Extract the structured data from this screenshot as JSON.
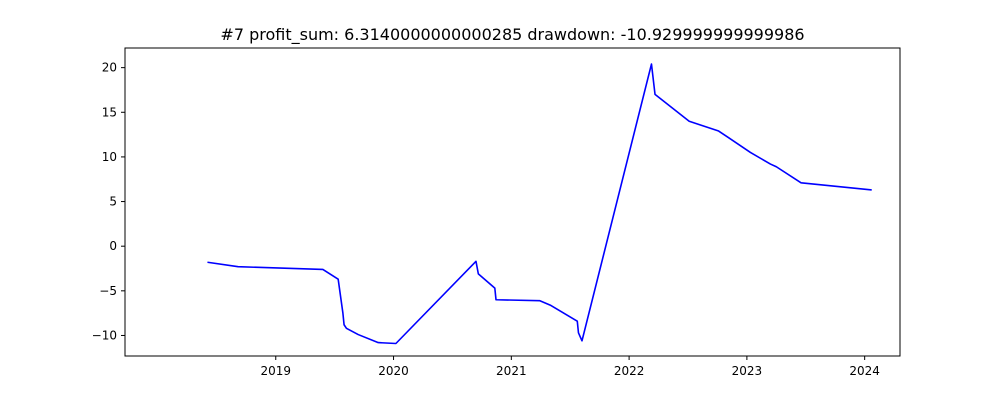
{
  "chart_data": {
    "type": "line",
    "title": "#7   profit_sum: 6.3140000000000285 drawdown: -10.929999999999986",
    "xlabel": "",
    "ylabel": "",
    "grid": false,
    "x_type": "year",
    "xlim": [
      2017.72,
      2024.3
    ],
    "ylim": [
      -12.3,
      22.2
    ],
    "x_ticks": [
      2019,
      2020,
      2021,
      2022,
      2023,
      2024
    ],
    "x_tick_labels": [
      "2019",
      "2020",
      "2021",
      "2022",
      "2023",
      "2024"
    ],
    "y_ticks": [
      20,
      15,
      10,
      5,
      0,
      -5,
      -10
    ],
    "y_tick_labels": [
      "20",
      "15",
      "10",
      "5",
      "0",
      "−5",
      "−10"
    ],
    "series": [
      {
        "color": "#0000ff",
        "x": [
          2018.42,
          2018.68,
          2019.4,
          2019.53,
          2019.57,
          2019.58,
          2019.6,
          2019.7,
          2019.87,
          2020.02,
          2020.7,
          2020.72,
          2020.86,
          2020.87,
          2021.24,
          2021.33,
          2021.56,
          2021.57,
          2021.6,
          2022.19,
          2022.22,
          2022.51,
          2022.76,
          2022.84,
          2023.03,
          2023.2,
          2023.25,
          2023.46,
          2024.06
        ],
        "y": [
          -1.8,
          -2.3,
          -2.6,
          -3.7,
          -7.5,
          -8.8,
          -9.2,
          -9.9,
          -10.8,
          -10.9,
          -1.7,
          -3.1,
          -4.7,
          -6.0,
          -6.1,
          -6.6,
          -8.4,
          -9.7,
          -10.6,
          20.4,
          17.0,
          14.0,
          12.9,
          12.2,
          10.5,
          9.2,
          8.9,
          7.1,
          6.3
        ]
      }
    ]
  }
}
